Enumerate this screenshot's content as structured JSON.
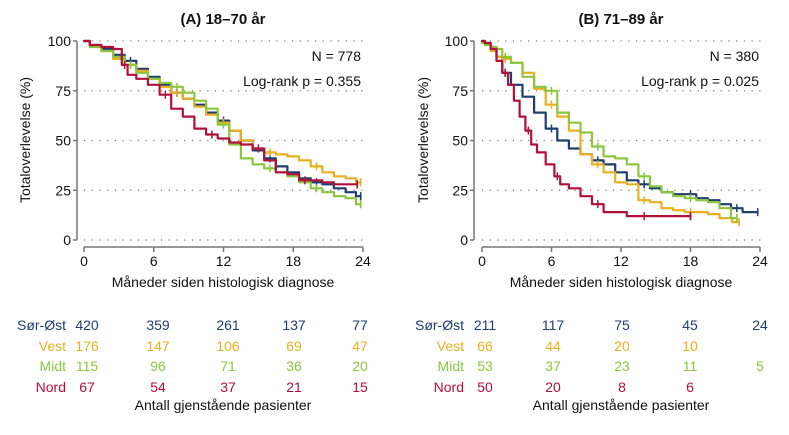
{
  "figure": {
    "risk_table_title": "Antall gjenstående pasienter"
  },
  "chart_data": [
    {
      "type": "line",
      "subtype": "kaplan-meier",
      "title": "(A) 18–70 år",
      "xlabel": "Måneder siden histologisk diagnose",
      "ylabel": "Totaloverlevelse (%)",
      "xlim": [
        0,
        24
      ],
      "ylim": [
        0,
        100
      ],
      "xticks": [
        0,
        6,
        12,
        18,
        24
      ],
      "yticks": [
        0,
        25,
        50,
        75,
        100
      ],
      "grid": "horizontal-dotted",
      "annotations": [
        "N = 778",
        "Log-rank p = 0.355"
      ],
      "series": [
        {
          "name": "Sør-Øst",
          "color": "#1f3d6e",
          "x": [
            0,
            1,
            2,
            3,
            4,
            5,
            6,
            7,
            8,
            9,
            10,
            11,
            12,
            13,
            14,
            15,
            16,
            17,
            18,
            19,
            20,
            21,
            22,
            23,
            23.8
          ],
          "y": [
            100,
            98,
            96,
            93,
            90,
            86,
            82,
            78,
            74,
            71,
            68,
            64,
            60,
            55,
            50,
            45,
            41,
            37,
            34,
            31,
            29,
            28,
            26,
            24,
            22
          ]
        },
        {
          "name": "Vest",
          "color": "#e8b020",
          "x": [
            0,
            1,
            2,
            3,
            4,
            5,
            6,
            7,
            8,
            9,
            10,
            11,
            12,
            13,
            14,
            15,
            16,
            17,
            18,
            19,
            20,
            21,
            22,
            23,
            23.8
          ],
          "y": [
            100,
            98,
            95,
            91,
            88,
            85,
            81,
            77,
            74,
            71,
            67,
            63,
            59,
            55,
            50,
            46,
            44,
            43,
            42,
            40,
            37,
            34,
            32,
            31,
            29
          ]
        },
        {
          "name": "Midt",
          "color": "#8cc63f",
          "x": [
            0,
            1,
            2,
            3,
            4,
            5,
            6,
            7,
            8,
            9,
            10,
            11,
            12,
            13,
            14,
            15,
            16,
            17,
            18,
            19,
            20,
            21,
            22,
            23,
            23.8
          ],
          "y": [
            100,
            97,
            95,
            92,
            88,
            84,
            81,
            79,
            77,
            74,
            70,
            66,
            58,
            48,
            41,
            38,
            36,
            34,
            32,
            29,
            26,
            24,
            22,
            21,
            18
          ]
        },
        {
          "name": "Nord",
          "color": "#b0103a",
          "x": [
            0,
            1,
            2,
            3,
            3.5,
            4,
            5,
            6,
            7,
            8,
            9,
            10,
            11,
            12,
            13,
            14,
            15,
            16,
            17,
            18,
            19,
            20,
            21,
            22,
            23.5
          ],
          "y": [
            100,
            98,
            97,
            96,
            88,
            83,
            81,
            78,
            73,
            66,
            62,
            56,
            53,
            51,
            49,
            48,
            46,
            40,
            34,
            33,
            30,
            30,
            29,
            28,
            28
          ]
        }
      ],
      "risk_table": {
        "times": [
          0,
          6,
          12,
          18,
          24
        ],
        "rows": [
          {
            "label": "Sør-Øst",
            "values": [
              "420",
              "359",
              "261",
              "137",
              "77"
            ]
          },
          {
            "label": "Vest",
            "values": [
              "176",
              "147",
              "106",
              "69",
              "47"
            ]
          },
          {
            "label": "Midt",
            "values": [
              "115",
              "96",
              "71",
              "36",
              "20"
            ]
          },
          {
            "label": "Nord",
            "values": [
              "67",
              "54",
              "37",
              "21",
              "15"
            ]
          }
        ]
      }
    },
    {
      "type": "line",
      "subtype": "kaplan-meier",
      "title": "(B) 71–89 år",
      "xlabel": "Måneder siden histologisk diagnose",
      "ylabel": "Totaloverlevelse (%)",
      "xlim": [
        0,
        24
      ],
      "ylim": [
        0,
        100
      ],
      "xticks": [
        0,
        6,
        12,
        18,
        24
      ],
      "yticks": [
        0,
        25,
        50,
        75,
        100
      ],
      "grid": "horizontal-dotted",
      "annotations": [
        "N = 380",
        "Log-rank p = 0.025"
      ],
      "series": [
        {
          "name": "Sør-Øst",
          "color": "#1f3d6e",
          "x": [
            0,
            0.5,
            1,
            1.5,
            2,
            3,
            4,
            5,
            6,
            7,
            8,
            9,
            10,
            11,
            12,
            13,
            14,
            15,
            16,
            17,
            18,
            19,
            20,
            21,
            22,
            23,
            23.8
          ],
          "y": [
            100,
            99,
            97,
            92,
            84,
            78,
            72,
            64,
            56,
            50,
            46,
            43,
            40,
            38,
            34,
            30,
            28,
            26,
            24,
            23,
            23,
            21,
            20,
            18,
            16,
            14,
            14
          ]
        },
        {
          "name": "Vest",
          "color": "#e8b020",
          "x": [
            0,
            0.5,
            1,
            1.5,
            2,
            3,
            4,
            5,
            6,
            7,
            8,
            9,
            10,
            11,
            12,
            13,
            14,
            15,
            16,
            17,
            18,
            19,
            20,
            21,
            22.2
          ],
          "y": [
            100,
            99,
            95,
            92,
            91,
            89,
            84,
            76,
            68,
            62,
            55,
            43,
            38,
            34,
            29,
            28,
            20,
            19,
            16,
            15,
            14,
            14,
            13,
            11,
            9
          ]
        },
        {
          "name": "Midt",
          "color": "#8cc63f",
          "x": [
            0,
            0.5,
            1,
            1.5,
            2,
            3,
            4,
            5,
            6,
            7,
            8,
            9,
            10,
            11,
            12,
            13,
            14,
            15,
            16,
            17,
            18,
            19,
            20,
            21,
            22
          ],
          "y": [
            99,
            98,
            97,
            96,
            92,
            89,
            82,
            77,
            75,
            64,
            59,
            54,
            47,
            42,
            41,
            38,
            32,
            27,
            24,
            22,
            21,
            20,
            19,
            16,
            11
          ]
        },
        {
          "name": "Nord",
          "color": "#b0103a",
          "x": [
            0,
            0.5,
            1,
            1.5,
            2,
            2.5,
            3,
            3.5,
            4,
            4.5,
            5,
            6,
            6.5,
            7,
            8,
            9,
            10,
            11,
            12,
            13,
            14,
            15,
            16,
            17,
            18
          ],
          "y": [
            100,
            99,
            96,
            90,
            84,
            78,
            70,
            62,
            55,
            48,
            44,
            38,
            32,
            28,
            26,
            22,
            18,
            14,
            14,
            12,
            12,
            12,
            12,
            12,
            12
          ]
        }
      ],
      "risk_table": {
        "times": [
          0,
          6,
          12,
          18,
          24
        ],
        "rows": [
          {
            "label": "Sør-Øst",
            "values": [
              "211",
              "117",
              "75",
              "45",
              "24"
            ]
          },
          {
            "label": "Vest",
            "values": [
              "66",
              "44",
              "20",
              "10",
              ""
            ]
          },
          {
            "label": "Midt",
            "values": [
              "53",
              "37",
              "23",
              "11",
              "5"
            ]
          },
          {
            "label": "Nord",
            "values": [
              "50",
              "20",
              "8",
              "6",
              ""
            ]
          }
        ]
      }
    }
  ]
}
